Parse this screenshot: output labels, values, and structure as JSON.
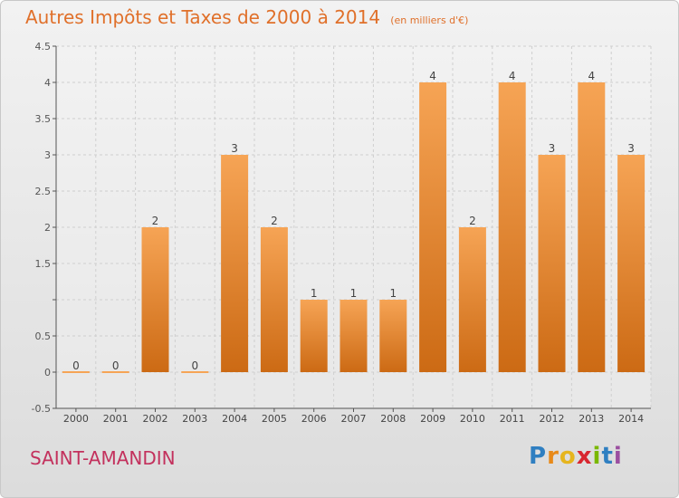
{
  "title": "Autres Impôts et Taxes de 2000 à 2014",
  "unit": "(en milliers d'€)",
  "location": "SAINT-AMANDIN",
  "brand": {
    "letters": [
      "P",
      "r",
      "o",
      "x",
      "i",
      "t",
      "i"
    ],
    "colors": [
      "#2f7fc1",
      "#e88a1a",
      "#e6b51e",
      "#d8262f",
      "#7ab800",
      "#2f7fc1",
      "#9b4fa0"
    ]
  },
  "colors": {
    "bar_light": "#f6a455",
    "bar_dark": "#cc6a14",
    "title": "#e0702a",
    "location": "#c3315d"
  },
  "chart_data": {
    "type": "bar",
    "categories": [
      "2000",
      "2001",
      "2002",
      "2003",
      "2004",
      "2005",
      "2006",
      "2007",
      "2008",
      "2009",
      "2010",
      "2011",
      "2012",
      "2013",
      "2014"
    ],
    "values": [
      0,
      0,
      2,
      0,
      3,
      2,
      1,
      1,
      1,
      4,
      2,
      4,
      3,
      4,
      3
    ],
    "value_labels": [
      "0",
      "0",
      "2",
      "0",
      "3",
      "2",
      "1",
      "1",
      "1",
      "4",
      "2",
      "4",
      "3",
      "4",
      "3"
    ],
    "y_ticks": [
      -0.5,
      0,
      0.5,
      1,
      1.5,
      2,
      2.5,
      3,
      3.5,
      4,
      4.5
    ],
    "y_tick_labels": [
      "-0.5",
      "0",
      "0.5",
      "",
      "1.5",
      "2",
      "2.5",
      "3",
      "3.5",
      "4",
      "4.5"
    ],
    "ylim": [
      -0.5,
      4.5
    ],
    "grid": true
  }
}
